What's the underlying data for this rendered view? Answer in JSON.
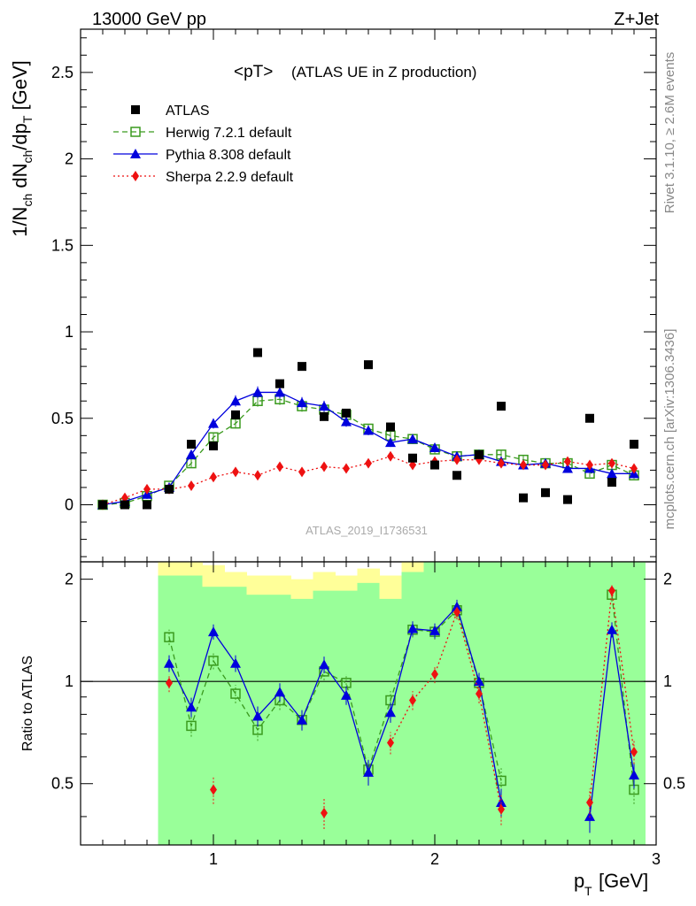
{
  "header": {
    "energy": "13000 GeV pp",
    "process": "Z+Jet",
    "plot_title": "<pT>",
    "plot_subtitle": "(ATLAS UE in Z production)",
    "analysis_id": "ATLAS_2019_I1736531",
    "rivet_info": "Rivet 3.1.10, ≥ 2.6M events",
    "site_info": "mcplots.cern.ch [arXiv:1306.3436]"
  },
  "colors": {
    "data": "#000000",
    "herwig": "#3a9a1e",
    "pythia": "#0000dd",
    "sherpa": "#ee1111",
    "band_inner": "#99ff99",
    "band_outer": "#ffff99"
  },
  "chart_data": [
    {
      "type": "scatter",
      "name": "main",
      "xlabel_main": "p",
      "xlabel_sub": "T",
      "xlabel_unit": "[GeV]",
      "ylabel": "1/N_ch dN_ch/dp_T [GeV]",
      "xlim": [
        0.4,
        3.0
      ],
      "ylim": [
        -0.33,
        2.75
      ],
      "yticks": [
        0,
        0.5,
        1,
        1.5,
        2,
        2.5
      ],
      "ytick_labels": [
        "0",
        "0.5",
        "1",
        "1.5",
        "2",
        "2.5"
      ],
      "legend_placement": "top-left",
      "x": [
        0.5,
        0.6,
        0.7,
        0.8,
        0.9,
        1.0,
        1.1,
        1.2,
        1.3,
        1.4,
        1.5,
        1.6,
        1.7,
        1.8,
        1.9,
        2.0,
        2.1,
        2.2,
        2.3,
        2.4,
        2.5,
        2.6,
        2.7,
        2.8,
        2.9
      ],
      "x_data": [
        0.5,
        0.6,
        0.7,
        0.8,
        0.9,
        1.0,
        1.1,
        1.2,
        1.3,
        1.4,
        1.5,
        1.6,
        1.7,
        1.8,
        1.9,
        2.0,
        2.1,
        2.2,
        2.3,
        2.4,
        2.5,
        2.6,
        2.7,
        2.8,
        2.9
      ],
      "series": [
        {
          "name": "ATLAS",
          "marker": "square-filled",
          "x": [
            0.5,
            0.6,
            0.7,
            0.8,
            0.9,
            1.0,
            1.1,
            1.2,
            1.3,
            1.4,
            1.5,
            1.6,
            1.7,
            1.8,
            1.9,
            2.0,
            2.1,
            2.2,
            2.3,
            2.4,
            2.5,
            2.6,
            2.7,
            2.8,
            2.9
          ],
          "values": [
            0.0,
            0.0,
            0.0,
            0.09,
            0.35,
            0.34,
            0.52,
            0.88,
            0.7,
            0.8,
            0.51,
            0.53,
            0.81,
            0.45,
            0.27,
            0.23,
            0.17,
            0.29,
            0.57,
            0.04,
            0.07,
            0.03,
            0.5,
            0.13,
            0.35
          ]
        },
        {
          "name": "Herwig 7.2.1 default",
          "marker": "square-open",
          "line": "dashed",
          "values": [
            0.0,
            0.01,
            0.05,
            0.11,
            0.24,
            0.39,
            0.47,
            0.6,
            0.61,
            0.57,
            0.55,
            0.52,
            0.44,
            0.4,
            0.38,
            0.32,
            0.28,
            0.29,
            0.29,
            0.26,
            0.24,
            0.24,
            0.18,
            0.23,
            0.17
          ]
        },
        {
          "name": "Pythia 8.308 default",
          "marker": "triangle-filled",
          "line": "solid",
          "values": [
            0.0,
            0.02,
            0.06,
            0.1,
            0.29,
            0.47,
            0.6,
            0.65,
            0.65,
            0.59,
            0.57,
            0.48,
            0.43,
            0.36,
            0.38,
            0.33,
            0.28,
            0.29,
            0.25,
            0.23,
            0.24,
            0.21,
            0.21,
            0.18,
            0.18
          ]
        },
        {
          "name": "Sherpa 2.2.9 default",
          "marker": "diamond-filled",
          "line": "dotted",
          "values": [
            0.0,
            0.04,
            0.09,
            0.09,
            0.11,
            0.16,
            0.19,
            0.17,
            0.22,
            0.19,
            0.22,
            0.21,
            0.24,
            0.28,
            0.23,
            0.25,
            0.26,
            0.26,
            0.24,
            0.23,
            0.23,
            0.25,
            0.23,
            0.24,
            0.21
          ]
        }
      ]
    },
    {
      "type": "scatter",
      "name": "ratio",
      "ylabel": "Ratio to ATLAS",
      "xlim": [
        0.4,
        3.0
      ],
      "ylim": [
        0.33,
        2.25
      ],
      "xticks": [
        1,
        2,
        3
      ],
      "xtick_labels": [
        "1",
        "2",
        "3"
      ],
      "yticks": [
        0.5,
        1,
        2
      ],
      "ytick_labels": [
        "0.5",
        "1",
        "2"
      ],
      "x": [
        0.8,
        0.9,
        1.0,
        1.1,
        1.2,
        1.3,
        1.4,
        1.5,
        1.6,
        1.7,
        1.8,
        1.9,
        2.0,
        2.1,
        2.2,
        2.3,
        2.4,
        2.5,
        2.6,
        2.7,
        2.8,
        2.9
      ],
      "band_edges": [
        0.75,
        0.85,
        0.95,
        1.05,
        1.15,
        1.25,
        1.35,
        1.45,
        1.55,
        1.65,
        1.75,
        1.85,
        1.95,
        2.05,
        2.15,
        2.25,
        2.35,
        2.45,
        2.55,
        2.65,
        2.75,
        2.85,
        2.95
      ],
      "band_inner": [
        [
          0.33,
          2.05
        ],
        [
          0.33,
          2.05
        ],
        [
          0.33,
          1.9
        ],
        [
          0.33,
          1.9
        ],
        [
          0.33,
          1.8
        ],
        [
          0.33,
          1.8
        ],
        [
          0.33,
          1.75
        ],
        [
          0.33,
          1.85
        ],
        [
          0.33,
          1.85
        ],
        [
          0.33,
          1.95
        ],
        [
          0.33,
          1.75
        ],
        [
          0.33,
          2.1
        ],
        [
          0.33,
          2.25
        ],
        [
          0.33,
          2.25
        ],
        [
          0.33,
          2.25
        ],
        [
          0.33,
          2.25
        ],
        [
          0.33,
          2.25
        ],
        [
          0.33,
          2.25
        ],
        [
          0.33,
          2.25
        ],
        [
          0.33,
          2.25
        ],
        [
          0.33,
          2.25
        ],
        [
          0.33,
          2.25
        ]
      ],
      "band_outer": [
        [
          0.33,
          2.25
        ],
        [
          0.33,
          2.25
        ],
        [
          0.33,
          2.2
        ],
        [
          0.33,
          2.1
        ],
        [
          0.33,
          2.05
        ],
        [
          0.33,
          2.05
        ],
        [
          0.33,
          2.0
        ],
        [
          0.33,
          2.1
        ],
        [
          0.33,
          2.05
        ],
        [
          0.33,
          2.15
        ],
        [
          0.33,
          2.05
        ],
        [
          0.33,
          2.25
        ],
        [
          0.33,
          2.25
        ],
        [
          0.33,
          2.25
        ],
        [
          0.33,
          2.25
        ],
        [
          0.33,
          2.25
        ],
        [
          0.33,
          2.25
        ],
        [
          0.33,
          2.25
        ],
        [
          0.33,
          2.25
        ],
        [
          0.33,
          2.25
        ],
        [
          0.33,
          2.25
        ],
        [
          0.33,
          2.25
        ]
      ],
      "series": [
        {
          "name": "Herwig 7.2.1 default",
          "values": [
            1.35,
            0.74,
            1.15,
            0.92,
            0.72,
            0.88,
            0.77,
            1.07,
            0.99,
            0.55,
            0.88,
            1.42,
            1.4,
            1.62,
            0.99,
            0.51,
            null,
            null,
            null,
            null,
            1.8,
            0.48
          ]
        },
        {
          "name": "Pythia 8.308 default",
          "values": [
            1.13,
            0.84,
            1.4,
            1.13,
            0.79,
            0.93,
            0.77,
            1.12,
            0.91,
            0.54,
            0.81,
            1.43,
            1.41,
            1.66,
            1.0,
            0.44,
            null,
            null,
            null,
            0.4,
            1.42,
            0.53
          ]
        },
        {
          "name": "Sherpa 2.2.9 default",
          "values": [
            0.99,
            null,
            0.48,
            null,
            null,
            null,
            null,
            0.41,
            null,
            null,
            0.66,
            0.88,
            1.05,
            1.6,
            0.92,
            0.42,
            null,
            null,
            null,
            0.44,
            1.85,
            0.62
          ]
        }
      ]
    }
  ]
}
